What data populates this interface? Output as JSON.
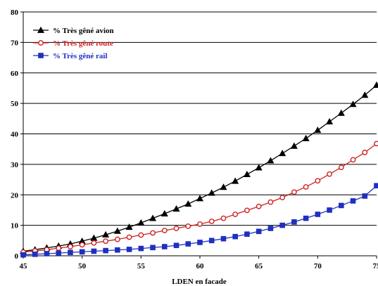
{
  "chart_data": {
    "type": "line",
    "title": "",
    "xlabel": "LDEN en facade",
    "ylabel": "",
    "xlim": [
      45,
      75
    ],
    "ylim": [
      0,
      80
    ],
    "xticks": [
      45,
      50,
      55,
      60,
      65,
      70,
      75
    ],
    "yticks": [
      0,
      10,
      20,
      30,
      40,
      50,
      60,
      70,
      80
    ],
    "grid": "horizontal",
    "legend_position": "top-left",
    "series": [
      {
        "name": "% Très gêné avion",
        "color": "#000000",
        "marker": "triangle",
        "x": [
          45,
          46,
          47,
          48,
          49,
          50,
          51,
          52,
          53,
          54,
          55,
          56,
          57,
          58,
          59,
          60,
          61,
          62,
          63,
          64,
          65,
          66,
          67,
          68,
          69,
          70,
          71,
          72,
          73,
          74,
          75
        ],
        "y": [
          1.5,
          2.0,
          2.6,
          3.2,
          3.9,
          4.8,
          5.8,
          6.9,
          8.1,
          9.4,
          10.8,
          12.3,
          13.8,
          15.4,
          17.0,
          18.8,
          20.6,
          22.5,
          24.5,
          26.7,
          28.9,
          31.2,
          33.6,
          36.0,
          38.5,
          41.2,
          44.0,
          46.8,
          49.7,
          52.7,
          56.0
        ]
      },
      {
        "name": "% Très gêné route",
        "color": "#cc2222",
        "marker": "circle",
        "x": [
          45,
          46,
          47,
          48,
          49,
          50,
          51,
          52,
          53,
          54,
          55,
          56,
          57,
          58,
          59,
          60,
          61,
          62,
          63,
          64,
          65,
          66,
          67,
          68,
          69,
          70,
          71,
          72,
          73,
          74,
          75
        ],
        "y": [
          1.2,
          1.6,
          2.0,
          2.5,
          3.0,
          3.6,
          4.2,
          4.8,
          5.4,
          6.1,
          6.8,
          7.5,
          8.3,
          9.0,
          9.7,
          10.4,
          11.3,
          12.3,
          13.6,
          14.9,
          16.2,
          17.6,
          19.1,
          20.9,
          22.6,
          24.6,
          26.8,
          29.0,
          31.5,
          33.9,
          36.8
        ]
      },
      {
        "name": "% Très gêné rail",
        "color": "#1f2fbf",
        "marker": "square",
        "x": [
          45,
          46,
          47,
          48,
          49,
          50,
          51,
          52,
          53,
          54,
          55,
          56,
          57,
          58,
          59,
          60,
          61,
          62,
          63,
          64,
          65,
          66,
          67,
          68,
          69,
          70,
          71,
          72,
          73,
          74,
          75
        ],
        "y": [
          0.3,
          0.5,
          0.7,
          0.9,
          1.1,
          1.3,
          1.5,
          1.7,
          1.9,
          2.1,
          2.4,
          2.7,
          3.0,
          3.4,
          3.9,
          4.4,
          5.0,
          5.6,
          6.3,
          7.1,
          8.0,
          9.0,
          10.0,
          11.1,
          12.3,
          13.6,
          15.0,
          16.5,
          18.0,
          19.6,
          23.0
        ]
      }
    ]
  }
}
